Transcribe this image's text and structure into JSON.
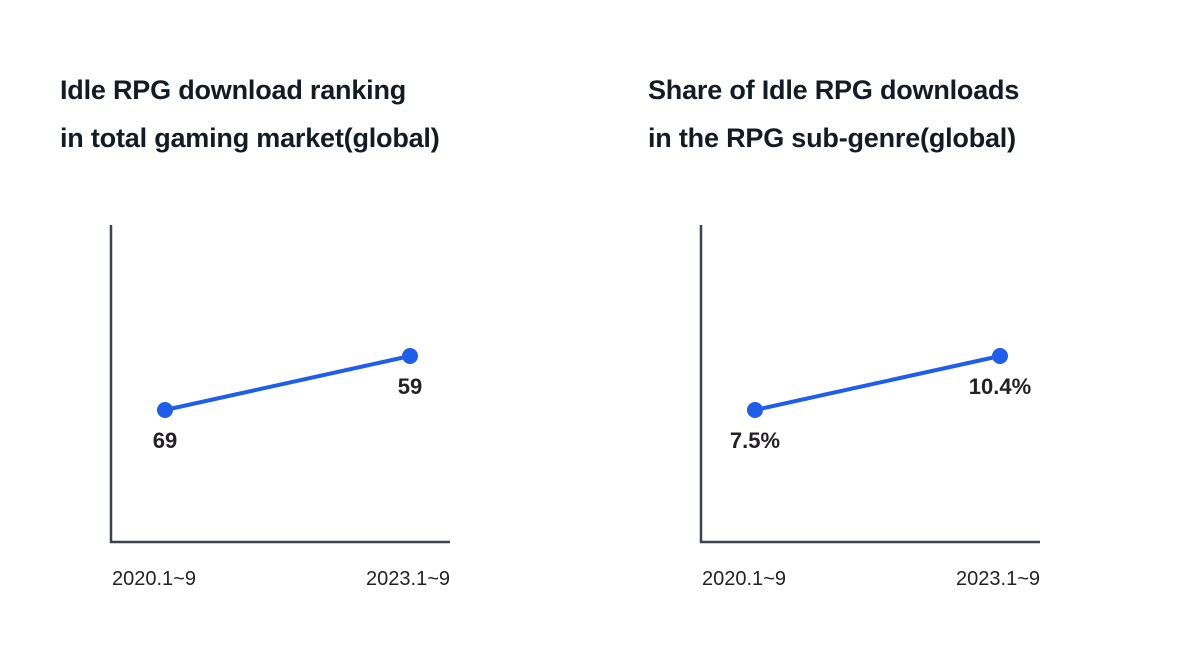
{
  "colors": {
    "background": "#ffffff",
    "line": "#1e5eeb",
    "axis": "#3d434d",
    "title_text": "#141b24",
    "label_text": "#242124"
  },
  "chart_data": [
    {
      "type": "line",
      "title": "Idle RPG download ranking in total gaming market(global)",
      "title_lines": [
        "Idle RPG download ranking",
        "in total gaming market(global)"
      ],
      "categories": [
        "2020.1~9",
        "2023.1~9"
      ],
      "series": [
        {
          "name": "Idle RPG download ranking",
          "values": [
            69,
            59
          ]
        }
      ],
      "value_labels": [
        "69",
        "59"
      ],
      "y_axis_inverted": true,
      "legend": "none",
      "grid": false
    },
    {
      "type": "line",
      "title": "Share of Idle RPG downloads in the RPG sub-genre(global)",
      "title_lines": [
        "Share of Idle RPG downloads",
        "in the RPG sub-genre(global)"
      ],
      "categories": [
        "2020.1~9",
        "2023.1~9"
      ],
      "series": [
        {
          "name": "Share of Idle RPG downloads",
          "values": [
            7.5,
            10.4
          ]
        }
      ],
      "value_labels": [
        "7.5%",
        "10.4%"
      ],
      "y_axis_inverted": false,
      "legend": "none",
      "grid": false
    }
  ]
}
